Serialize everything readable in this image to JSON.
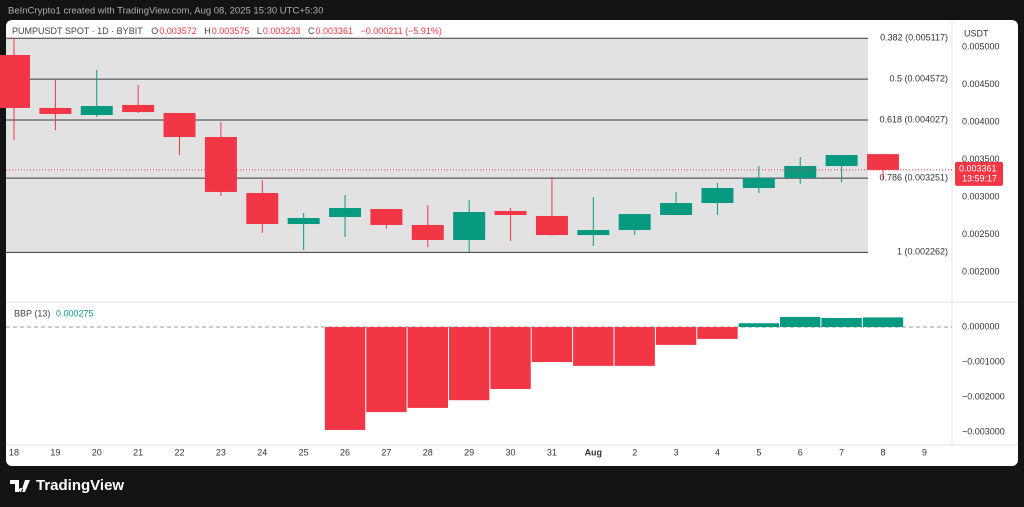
{
  "watermark": "BeInCrypto1 created with TradingView.com, Aug 08, 2025 15:30 UTC+5:30",
  "brand": "TradingView",
  "chart_data": [
    {
      "type": "candlestick",
      "title": "PUMPUSDT SPOT · 1D · BYBIT",
      "legend": {
        "labels": [
          "O",
          "H",
          "L",
          "C"
        ],
        "values": [
          0.003572,
          0.003575,
          0.003233,
          0.003361
        ],
        "change": "−0.000211 (−5.91%)"
      },
      "unit": "USDT",
      "categories": [
        "18",
        "19",
        "20",
        "21",
        "22",
        "23",
        "24",
        "25",
        "26",
        "27",
        "28",
        "29",
        "30",
        "31",
        "Aug",
        "2",
        "3",
        "4",
        "5",
        "6",
        "7",
        "8",
        "9"
      ],
      "open": [
        0.004893,
        0.004187,
        0.004093,
        0.004227,
        0.00412,
        0.0038,
        0.003053,
        0.00264,
        0.002733,
        0.00284,
        0.002627,
        0.002427,
        0.002813,
        0.002747,
        0.002493,
        0.00256,
        0.00276,
        0.00292,
        0.00312,
        0.003253,
        0.003413,
        0.003572,
        null
      ],
      "high": [
        0.00512,
        0.00456,
        0.004693,
        0.004493,
        0.00412,
        0.004,
        0.003227,
        0.002787,
        0.003027,
        0.00284,
        0.002893,
        0.00296,
        0.002853,
        0.003267,
        0.003,
        0.002773,
        0.003067,
        0.003187,
        0.003413,
        0.003533,
        0.00356,
        0.003575,
        null
      ],
      "low": [
        0.00376,
        0.00389,
        0.004067,
        0.00412,
        0.00356,
        0.003013,
        0.00252,
        0.002293,
        0.002467,
        0.00258,
        0.002333,
        0.002267,
        0.002413,
        0.00249,
        0.002347,
        0.002493,
        0.00276,
        0.00276,
        0.003053,
        0.003173,
        0.0032,
        0.003233,
        null
      ],
      "close": [
        0.004187,
        0.004107,
        0.004213,
        0.004133,
        0.0038,
        0.003067,
        0.00264,
        0.00272,
        0.002853,
        0.002627,
        0.002427,
        0.0028,
        0.00276,
        0.002493,
        0.00256,
        0.002773,
        0.00292,
        0.00312,
        0.003253,
        0.003413,
        0.00356,
        0.003361,
        null
      ],
      "up_color": "#089981",
      "down_color": "#f23645",
      "ylim": [
        0.001627,
        0.005293
      ],
      "yticks": [
        {
          "value": 0.002,
          "label": "0.002000"
        },
        {
          "value": 0.0025,
          "label": "0.002500"
        },
        {
          "value": 0.003,
          "label": "0.003000"
        },
        {
          "value": 0.0035,
          "label": "0.003500"
        },
        {
          "value": 0.004,
          "label": "0.004000"
        },
        {
          "value": 0.0045,
          "label": "0.004500"
        },
        {
          "value": 0.005,
          "label": "0.005000"
        }
      ],
      "levels": [
        {
          "value": 0.005117,
          "label": "0.382 (0.005117)"
        },
        {
          "value": 0.004572,
          "label": "0.5 (0.004572)"
        },
        {
          "value": 0.004027,
          "label": "0.618 (0.004027)"
        },
        {
          "value": 0.003251,
          "label": "0.786 (0.003251)"
        },
        {
          "value": 0.002262,
          "label": "1 (0.002262)"
        }
      ],
      "last_price": 0.003361,
      "countdown": "13:59:17"
    },
    {
      "type": "bar",
      "title": "BBP (13)",
      "value_label": 0.000275,
      "values": [
        null,
        null,
        null,
        null,
        null,
        null,
        null,
        null,
        -0.00294,
        -0.00243,
        -0.00231,
        -0.00209,
        -0.00177,
        -0.001,
        -0.00111,
        -0.00111,
        -0.00051,
        -0.00034,
        0.00011,
        0.00029,
        0.00026,
        0.000275,
        null
      ],
      "up_color": "#089981",
      "down_color": "#f23645",
      "ylim": [
        -0.00337,
        0.00063
      ],
      "yticks": [
        {
          "value": 0,
          "label": "0.000000"
        },
        {
          "value": -0.001,
          "label": "−0.001000"
        },
        {
          "value": -0.002,
          "label": "−0.002000"
        },
        {
          "value": -0.003,
          "label": "−0.003000"
        }
      ]
    }
  ]
}
